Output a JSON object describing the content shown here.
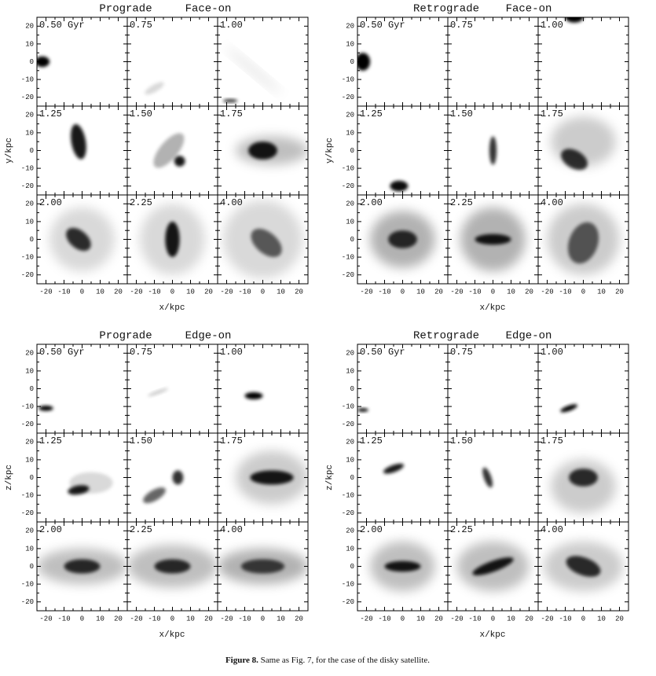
{
  "groups": [
    {
      "title_left": "Prograde",
      "title_right": "Face-on",
      "x_label": "x/kpc",
      "y_label": "y/kpc",
      "panel_labels": [
        "0.50 Gyr",
        "0.75",
        "1.00",
        "1.25",
        "1.50",
        "1.75",
        "2.00",
        "2.25",
        "4.00"
      ],
      "x_ticks": [
        "-20",
        "-10",
        "0",
        "10",
        "20"
      ],
      "y_ticks": [
        "20",
        "10",
        "0",
        "-10",
        "-20"
      ]
    },
    {
      "title_left": "Retrograde",
      "title_right": "Face-on",
      "x_label": "x/kpc",
      "y_label": "y/kpc",
      "panel_labels": [
        "0.50 Gyr",
        "0.75",
        "1.00",
        "1.25",
        "1.50",
        "1.75",
        "2.00",
        "2.25",
        "4.00"
      ],
      "x_ticks": [
        "-20",
        "-10",
        "0",
        "10",
        "20"
      ],
      "y_ticks": [
        "20",
        "10",
        "0",
        "-10",
        "-20"
      ]
    },
    {
      "title_left": "Prograde",
      "title_right": "Edge-on",
      "x_label": "x/kpc",
      "y_label": "z/kpc",
      "panel_labels": [
        "0.50 Gyr",
        "0.75",
        "1.00",
        "1.25",
        "1.50",
        "1.75",
        "2.00",
        "2.25",
        "4.00"
      ],
      "x_ticks": [
        "-20",
        "-10",
        "0",
        "10",
        "20"
      ],
      "y_ticks": [
        "20",
        "10",
        "0",
        "-10",
        "-20"
      ]
    },
    {
      "title_left": "Retrograde",
      "title_right": "Edge-on",
      "x_label": "x/kpc",
      "y_label": "z/kpc",
      "panel_labels": [
        "0.50 Gyr",
        "0.75",
        "1.00",
        "1.25",
        "1.50",
        "1.75",
        "2.00",
        "2.25",
        "4.00"
      ],
      "x_ticks": [
        "-20",
        "-10",
        "0",
        "10",
        "20"
      ],
      "y_ticks": [
        "20",
        "10",
        "0",
        "-10",
        "-20"
      ]
    }
  ],
  "caption": {
    "label": "Figure 8.",
    "text": "Same as Fig. 7, for the case of the disky satellite."
  }
}
